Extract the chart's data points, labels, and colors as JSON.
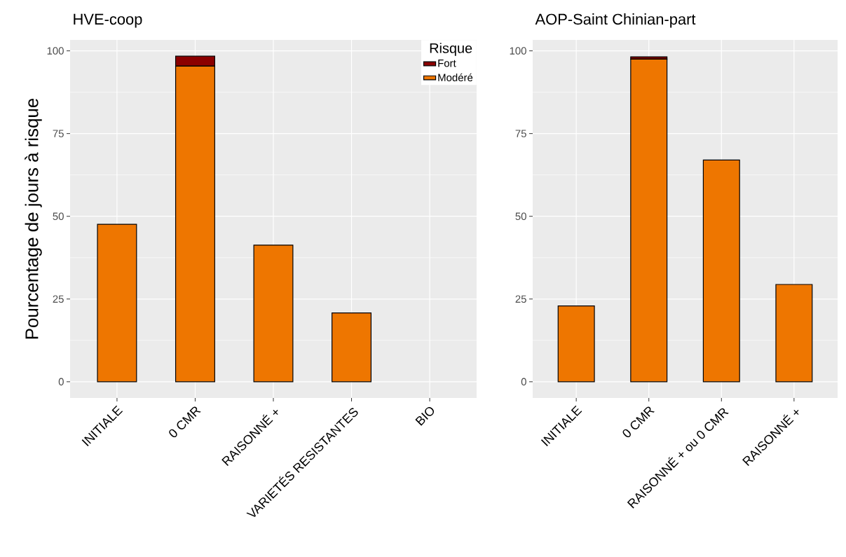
{
  "chart_data": [
    {
      "type": "bar",
      "title": "HVE-coop",
      "ylabel": "Pourcentage de jours à risque",
      "categories": [
        "INITIALE",
        "0 CMR",
        "RAISONNÉ +",
        "VARIETÉS RESISTANTES",
        "BIO"
      ],
      "series": [
        {
          "name": "Modéré",
          "color": "#ee7600",
          "values": [
            47.6,
            95.4,
            41.3,
            20.8,
            0
          ]
        },
        {
          "name": "Fort",
          "color": "#8b0000",
          "values": [
            0,
            3.0,
            0,
            0,
            0
          ]
        }
      ],
      "stacked": true,
      "ylim": [
        -4.9,
        103.3
      ],
      "yticks": [
        0,
        25,
        50,
        75,
        100
      ],
      "grid": true,
      "legend": "top right",
      "legend_title": "Risque"
    },
    {
      "type": "bar",
      "title": "AOP-Saint Chinian-part",
      "categories": [
        "INITIALE",
        "0 CMR",
        "RAISONNÉ + ou 0 CMR",
        "RAISONNÉ +"
      ],
      "series": [
        {
          "color": "#ee7600",
          "values": [
            22.9,
            97.5,
            67.0,
            29.4
          ]
        },
        {
          "color": "#8b0000",
          "values": [
            0,
            0.7,
            0,
            0
          ]
        }
      ],
      "stacked": true,
      "ylim": [
        -4.9,
        103.3
      ],
      "yticks": [
        0,
        25,
        50,
        75,
        100
      ],
      "grid": true
    }
  ]
}
